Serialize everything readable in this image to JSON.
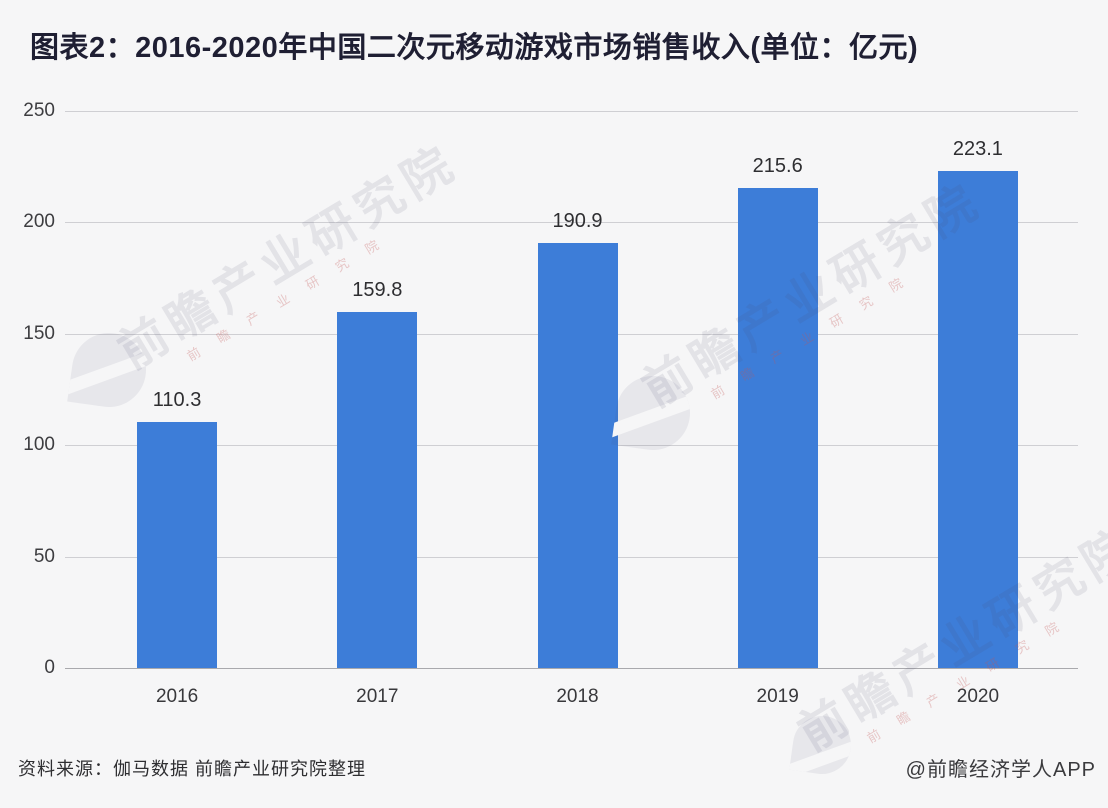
{
  "title": "图表2：2016-2020年中国二次元移动游戏市场销售收入(单位：亿元)",
  "chart_data": {
    "type": "bar",
    "categories": [
      "2016",
      "2017",
      "2018",
      "2019",
      "2020"
    ],
    "values": [
      110.3,
      159.8,
      190.9,
      215.6,
      223.1
    ],
    "value_labels": [
      "110.3",
      "159.8",
      "190.9",
      "215.6",
      "223.1"
    ],
    "title": "图表2：2016-2020年中国二次元移动游戏市场销售收入(单位：亿元)",
    "xlabel": "",
    "ylabel": "",
    "unit": "亿元",
    "ylim": [
      0,
      250
    ],
    "yticks": [
      0,
      50,
      100,
      150,
      200,
      250
    ],
    "grid": true,
    "legend": false,
    "bar_color": "#3d7dd8",
    "background_color": "#f6f6f7"
  },
  "footer": {
    "source": "资料来源：伽马数据 前瞻产业研究院整理",
    "credit": "@前瞻经济学人APP"
  },
  "watermark": {
    "text": "前瞻产业研究院",
    "subtext": "前 瞻 产 业 研 究 院"
  }
}
